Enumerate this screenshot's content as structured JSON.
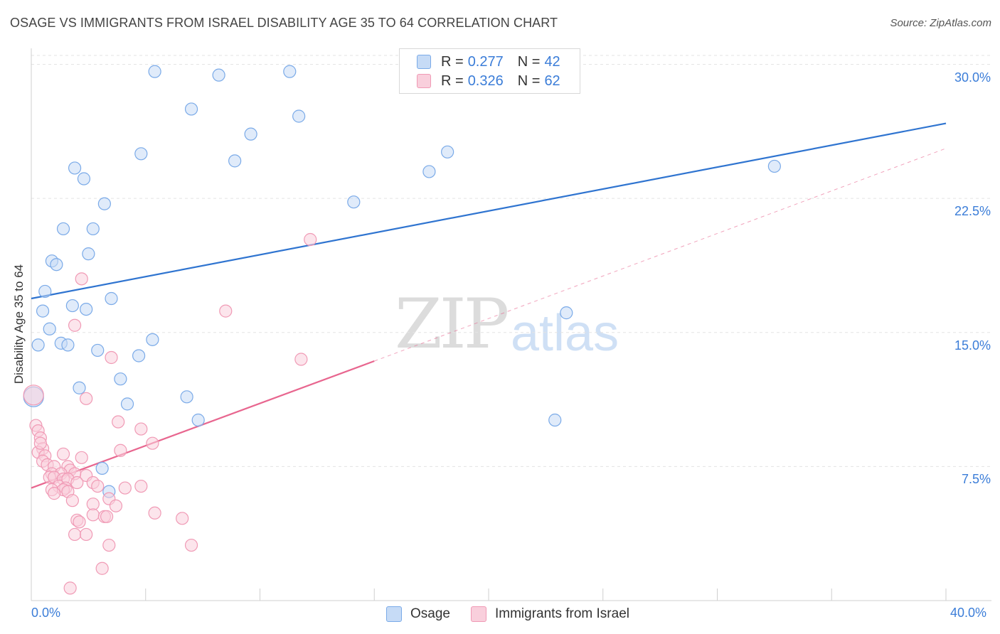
{
  "title": "OSAGE VS IMMIGRANTS FROM ISRAEL DISABILITY AGE 35 TO 64 CORRELATION CHART",
  "source": "Source: ZipAtlas.com",
  "watermark": {
    "zip": "ZIP",
    "atlas": "atlas"
  },
  "legend": {
    "osage": {
      "r_label": "R =",
      "r_value": "0.277",
      "n_label": "N =",
      "n_value": "42"
    },
    "israel": {
      "r_label": "R =",
      "r_value": "0.326",
      "n_label": "N =",
      "n_value": "62"
    }
  },
  "bottom_legend": {
    "osage": "Osage",
    "israel": "Immigrants from Israel"
  },
  "colors": {
    "osage": "#7aaae8",
    "osage_fill": "#c6dbf6",
    "osage_line": "#2f74d0",
    "israel": "#f09ab5",
    "israel_fill": "#f9cfdc",
    "israel_line": "#e8668f",
    "accent_text": "#3b7dd8"
  },
  "chart_data": {
    "type": "scatter",
    "xlabel": "",
    "ylabel": "Disability Age 35 to 64",
    "xlim": [
      0,
      40
    ],
    "ylim": [
      0,
      30.5
    ],
    "x_tick_labels": [
      "0.0%",
      "40.0%"
    ],
    "y_ticks": [
      7.5,
      15.0,
      22.5,
      30.0
    ],
    "y_tick_labels": [
      "7.5%",
      "15.0%",
      "22.5%",
      "30.0%"
    ],
    "grid": true,
    "series": [
      {
        "name": "Osage",
        "points": [
          [
            5.4,
            29.6
          ],
          [
            8.2,
            29.4
          ],
          [
            11.3,
            29.6
          ],
          [
            7.0,
            27.5
          ],
          [
            11.7,
            27.1
          ],
          [
            9.6,
            26.1
          ],
          [
            4.8,
            25.0
          ],
          [
            8.9,
            24.6
          ],
          [
            18.2,
            25.1
          ],
          [
            17.4,
            24.0
          ],
          [
            32.5,
            24.3
          ],
          [
            1.9,
            24.2
          ],
          [
            2.3,
            23.6
          ],
          [
            3.2,
            22.2
          ],
          [
            14.1,
            22.3
          ],
          [
            1.4,
            20.8
          ],
          [
            2.7,
            20.8
          ],
          [
            2.5,
            19.4
          ],
          [
            0.9,
            19.0
          ],
          [
            1.1,
            18.8
          ],
          [
            0.6,
            17.3
          ],
          [
            1.8,
            16.5
          ],
          [
            2.4,
            16.3
          ],
          [
            3.5,
            16.9
          ],
          [
            0.5,
            16.2
          ],
          [
            23.4,
            16.1
          ],
          [
            0.8,
            15.2
          ],
          [
            5.3,
            14.6
          ],
          [
            0.3,
            14.3
          ],
          [
            1.3,
            14.4
          ],
          [
            1.6,
            14.3
          ],
          [
            2.9,
            14.0
          ],
          [
            4.7,
            13.7
          ],
          [
            3.9,
            12.4
          ],
          [
            2.1,
            11.9
          ],
          [
            6.8,
            11.4
          ],
          [
            4.2,
            11.0
          ],
          [
            7.3,
            10.1
          ],
          [
            22.9,
            10.1
          ],
          [
            3.1,
            7.4
          ],
          [
            3.4,
            6.1
          ],
          [
            0.1,
            11.4
          ]
        ]
      },
      {
        "name": "Immigrants from Israel",
        "points": [
          [
            12.2,
            20.2
          ],
          [
            2.2,
            18.0
          ],
          [
            8.5,
            16.2
          ],
          [
            1.9,
            15.4
          ],
          [
            3.5,
            13.6
          ],
          [
            11.8,
            13.5
          ],
          [
            2.4,
            11.3
          ],
          [
            0.1,
            11.5
          ],
          [
            0.2,
            9.8
          ],
          [
            3.8,
            10.0
          ],
          [
            4.8,
            9.6
          ],
          [
            0.3,
            9.5
          ],
          [
            0.4,
            9.1
          ],
          [
            5.3,
            8.8
          ],
          [
            0.5,
            8.5
          ],
          [
            3.9,
            8.4
          ],
          [
            0.3,
            8.3
          ],
          [
            0.6,
            8.1
          ],
          [
            1.4,
            8.2
          ],
          [
            2.2,
            8.0
          ],
          [
            0.5,
            7.8
          ],
          [
            0.7,
            7.6
          ],
          [
            1.0,
            7.5
          ],
          [
            1.6,
            7.5
          ],
          [
            1.7,
            7.3
          ],
          [
            0.9,
            7.1
          ],
          [
            1.3,
            7.1
          ],
          [
            2.4,
            7.0
          ],
          [
            1.9,
            7.1
          ],
          [
            0.8,
            6.9
          ],
          [
            1.0,
            6.9
          ],
          [
            1.4,
            6.8
          ],
          [
            1.6,
            6.8
          ],
          [
            2.0,
            6.6
          ],
          [
            2.7,
            6.6
          ],
          [
            1.2,
            6.4
          ],
          [
            1.5,
            6.3
          ],
          [
            4.8,
            6.4
          ],
          [
            2.9,
            6.4
          ],
          [
            4.1,
            6.3
          ],
          [
            0.9,
            6.2
          ],
          [
            1.4,
            6.2
          ],
          [
            1.6,
            6.1
          ],
          [
            1.0,
            6.0
          ],
          [
            3.4,
            5.7
          ],
          [
            1.8,
            5.6
          ],
          [
            2.7,
            5.4
          ],
          [
            3.7,
            5.3
          ],
          [
            2.7,
            4.8
          ],
          [
            5.4,
            4.9
          ],
          [
            3.2,
            4.7
          ],
          [
            3.3,
            4.7
          ],
          [
            6.6,
            4.6
          ],
          [
            2.0,
            4.5
          ],
          [
            2.1,
            4.4
          ],
          [
            1.9,
            3.7
          ],
          [
            2.4,
            3.7
          ],
          [
            3.4,
            3.1
          ],
          [
            7.0,
            3.1
          ],
          [
            3.1,
            1.8
          ],
          [
            1.7,
            0.7
          ],
          [
            0.4,
            8.8
          ]
        ]
      }
    ],
    "trendlines": [
      {
        "series": "Osage",
        "x": [
          0,
          40
        ],
        "y": [
          16.9,
          26.7
        ],
        "style": "solid"
      },
      {
        "series": "Immigrants from Israel",
        "x": [
          0,
          15
        ],
        "y": [
          6.3,
          13.4
        ],
        "style": "solid"
      },
      {
        "series": "Immigrants from Israel",
        "x": [
          15,
          40
        ],
        "y": [
          13.4,
          25.3
        ],
        "style": "dashed"
      }
    ]
  }
}
